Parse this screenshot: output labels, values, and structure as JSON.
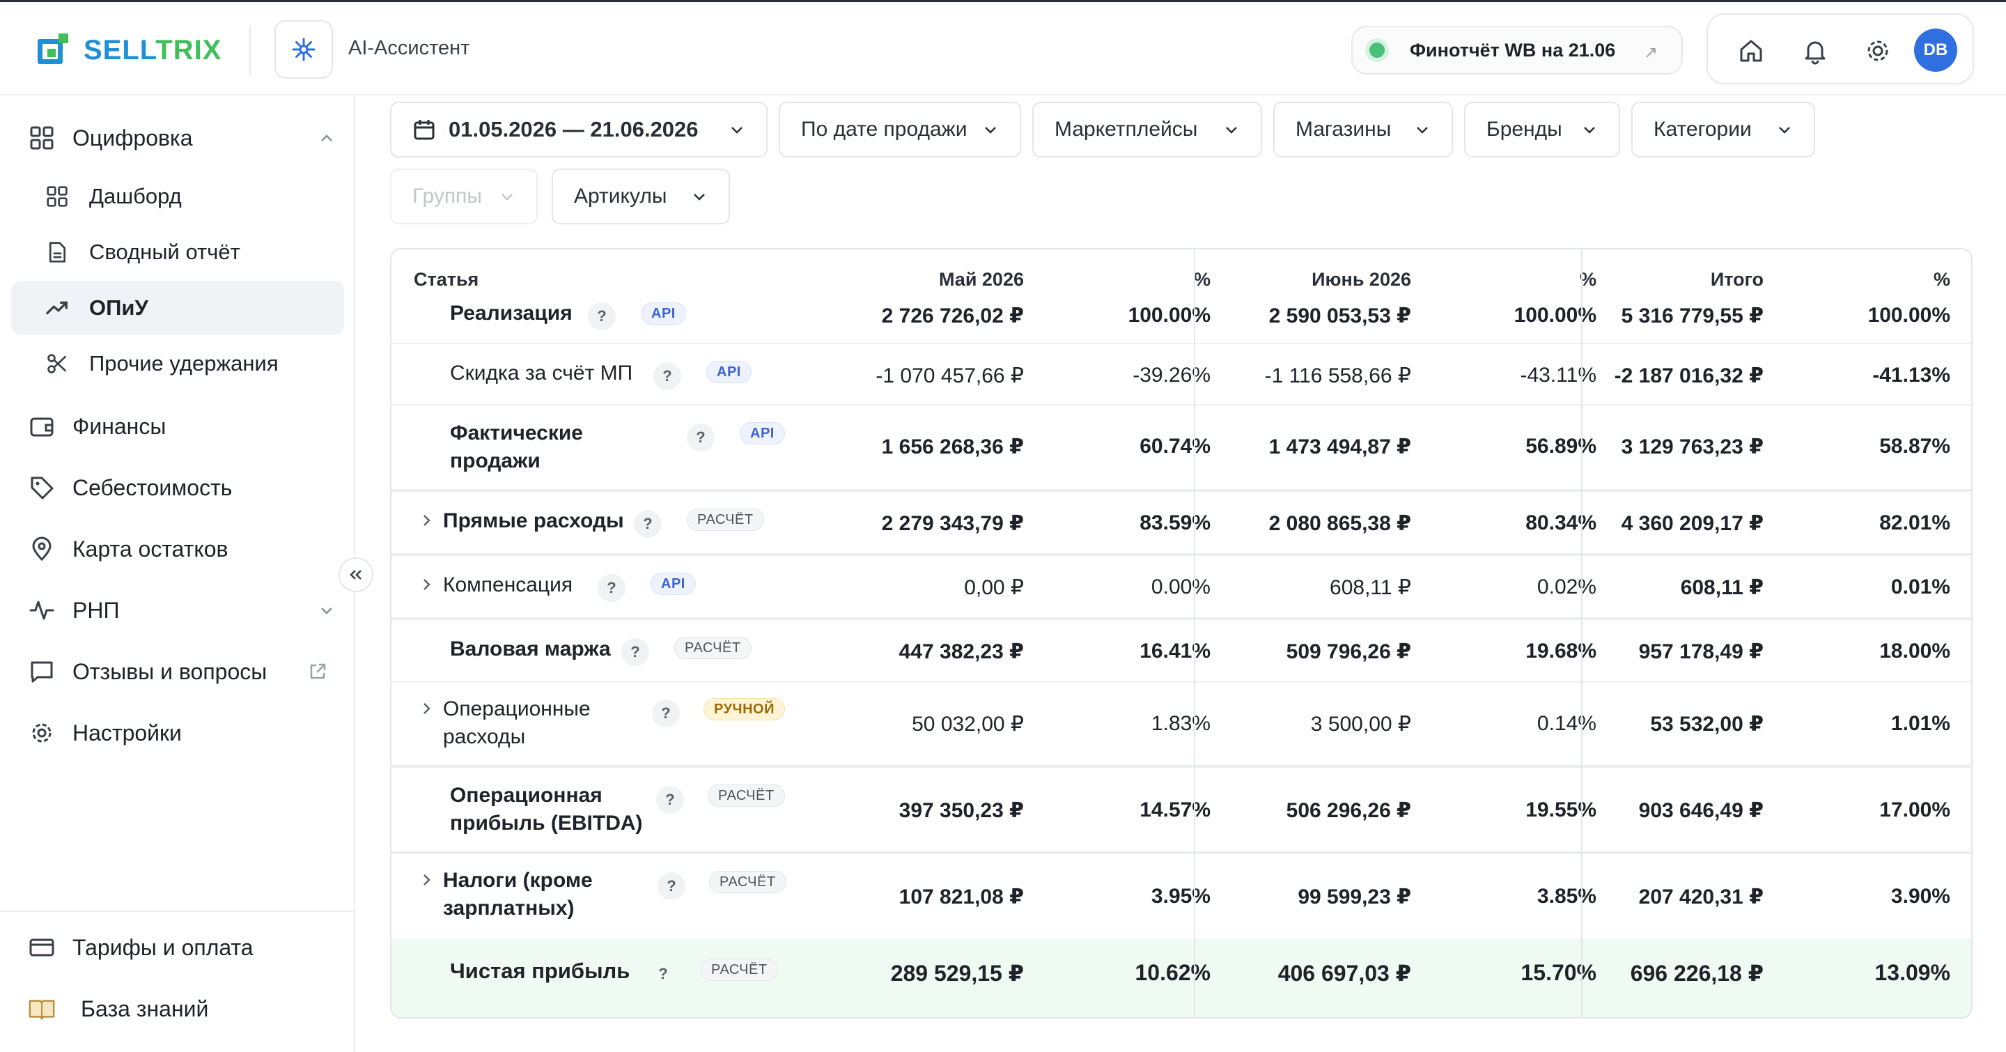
{
  "header": {
    "logo_a": "SELL",
    "logo_b": "TRIX",
    "ai_label": "AI-Ассистент",
    "report_chip": "Финотчёт WB на 21.06",
    "avatar": "DB"
  },
  "sidebar": {
    "groups": [
      {
        "label": "Оцифровка",
        "icon": "grid-icon"
      },
      {
        "label": "Финансы",
        "icon": "wallet-icon"
      },
      {
        "label": "Себестоимость",
        "icon": "tag-icon"
      },
      {
        "label": "Карта остатков",
        "icon": "map-pin-icon"
      },
      {
        "label": "РНП",
        "icon": "pulse-icon"
      },
      {
        "label": "Отзывы и вопросы",
        "icon": "chat-icon"
      },
      {
        "label": "Настройки",
        "icon": "gear-icon"
      }
    ],
    "sub_items": [
      {
        "label": "Дашборд",
        "icon": "grid-icon"
      },
      {
        "label": "Сводный отчёт",
        "icon": "document-icon"
      },
      {
        "label": "ОПиУ",
        "icon": "trend-up-icon",
        "active": true
      },
      {
        "label": "Прочие удержания",
        "icon": "scissors-icon"
      }
    ],
    "bottom": [
      {
        "label": "Тарифы и оплата",
        "icon": "card-icon"
      },
      {
        "label": "База знаний",
        "icon": "book-icon"
      }
    ]
  },
  "filters": {
    "date": "01.05.2026 — 21.06.2026",
    "by_date": "По дате продажи",
    "marketplaces": "Маркетплейсы",
    "shops": "Магазины",
    "brands": "Бренды",
    "categories": "Категории",
    "groups": "Группы",
    "articles": "Артикулы"
  },
  "table": {
    "columns": [
      "Статья",
      "Май 2026",
      "%",
      "Июнь 2026",
      "%",
      "Итого",
      "%"
    ],
    "rows": [
      {
        "name": "Реализация",
        "badge": "API",
        "may": "2 726 726,02 ₽",
        "may_pct": "100.00%",
        "jun": "2 590 053,53 ₽",
        "jun_pct": "100.00%",
        "total": "5 316 779,55 ₽",
        "total_pct": "100.00%"
      },
      {
        "name": "Скидка за счёт МП",
        "badge": "API",
        "may": "-1 070 457,66 ₽",
        "may_pct": "-39.26%",
        "jun": "-1 116 558,66 ₽",
        "jun_pct": "-43.11%",
        "total": "-2 187 016,32 ₽",
        "total_pct": "-41.13%"
      },
      {
        "name_1": "Фактические",
        "name_2": "продажи",
        "badge": "API",
        "may": "1 656 268,36 ₽",
        "may_pct": "60.74%",
        "jun": "1 473 494,87 ₽",
        "jun_pct": "56.89%",
        "total": "3 129 763,23 ₽",
        "total_pct": "58.87%"
      },
      {
        "name": "Прямые расходы",
        "badge": "РАСЧЁТ",
        "may": "2 279 343,79 ₽",
        "may_pct": "83.59%",
        "jun": "2 080 865,38 ₽",
        "jun_pct": "80.34%",
        "total": "4 360 209,17 ₽",
        "total_pct": "82.01%"
      },
      {
        "name": "Компенсация",
        "badge": "API",
        "may": "0,00 ₽",
        "may_pct": "0.00%",
        "jun": "608,11 ₽",
        "jun_pct": "0.02%",
        "total": "608,11 ₽",
        "total_pct": "0.01%"
      },
      {
        "name": "Валовая маржа",
        "badge": "РАСЧЁТ",
        "may": "447 382,23 ₽",
        "may_pct": "16.41%",
        "jun": "509 796,26 ₽",
        "jun_pct": "19.68%",
        "total": "957 178,49 ₽",
        "total_pct": "18.00%"
      },
      {
        "name_1": "Операционные",
        "name_2": "расходы",
        "badge": "РУЧНОЙ",
        "may": "50 032,00 ₽",
        "may_pct": "1.83%",
        "jun": "3 500,00 ₽",
        "jun_pct": "0.14%",
        "total": "53 532,00 ₽",
        "total_pct": "1.01%"
      },
      {
        "name_1": "Операционная",
        "name_2": "прибыль (EBITDA)",
        "badge": "РАСЧЁТ",
        "may": "397 350,23 ₽",
        "may_pct": "14.57%",
        "jun": "506 296,26 ₽",
        "jun_pct": "19.55%",
        "total": "903 646,49 ₽",
        "total_pct": "17.00%"
      },
      {
        "name_1": "Налоги (кроме",
        "name_2": "зарплатных)",
        "badge": "РАСЧЁТ",
        "may": "107 821,08 ₽",
        "may_pct": "3.95%",
        "jun": "99 599,23 ₽",
        "jun_pct": "3.85%",
        "total": "207 420,31 ₽",
        "total_pct": "3.90%"
      },
      {
        "name": "Чистая прибыль",
        "badge": "РАСЧЁТ",
        "may": "289 529,15 ₽",
        "may_pct": "10.62%",
        "jun": "406 697,03 ₽",
        "jun_pct": "15.70%",
        "total": "696 226,18 ₽",
        "total_pct": "13.09%"
      }
    ],
    "qmark": "?"
  },
  "colors": {
    "accent": "#1f8fd6",
    "green": "#3fbf5a",
    "avatar": "#2f6fe0",
    "net_row": "#eefaf2"
  }
}
